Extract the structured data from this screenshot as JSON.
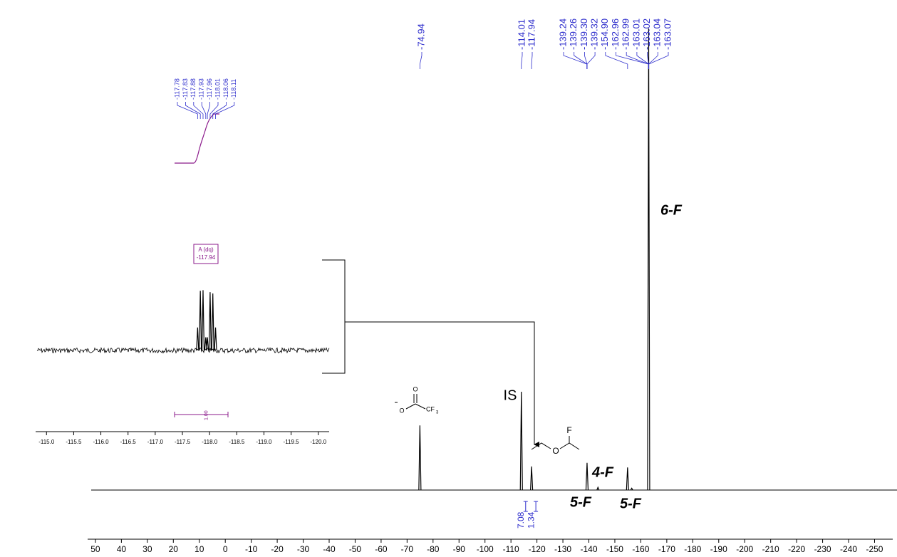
{
  "chart_data": [
    {
      "type": "spectrum",
      "xlim": [
        53,
        -257
      ],
      "xticks": [
        50,
        40,
        30,
        20,
        10,
        0,
        -10,
        -20,
        -30,
        -40,
        -50,
        -60,
        -70,
        -80,
        -90,
        -100,
        -110,
        -120,
        -130,
        -140,
        -150,
        -160,
        -170,
        -180,
        -190,
        -200,
        -210,
        -220,
        -230,
        -240,
        -250
      ],
      "ylim": [
        0,
        100
      ],
      "color": "#000000",
      "label_color": "#2d2dcc",
      "peaks": {
        "x": [
          -74.94,
          -114.01,
          -117.94,
          -139.3,
          -143.5,
          -154.9,
          -156.5,
          -163.02
        ],
        "values": [
          14,
          21.3,
          5.1,
          5.9,
          0.6,
          4.9,
          0.4,
          100
        ]
      },
      "peak_labels": [
        "-74.94",
        "-114.01",
        "-117.94",
        "-139.24",
        "-139.26",
        "-139.30",
        "-139.32",
        "-154.90",
        "-162.96",
        "-162.99",
        "-163.01",
        "-163.02",
        "-163.04",
        "-163.07"
      ],
      "integrals": {
        "x": [
          -114.01,
          -117.94
        ],
        "values": [
          7.08,
          1.34
        ]
      },
      "annotations": [
        "IS",
        "4-F",
        "5-F",
        "5-F",
        "6-F"
      ],
      "structure_labels": [
        "O",
        "O",
        "CF",
        "3",
        "F",
        "O"
      ]
    },
    {
      "type": "spectrum",
      "xlim": [
        -114.8,
        -120.2
      ],
      "xticks": [
        {
          "value": -115,
          "label": "-115.0"
        },
        {
          "value": -115.5,
          "label": "-115.5"
        },
        {
          "value": -116,
          "label": "-116.0"
        },
        {
          "value": -116.5,
          "label": "-116.5"
        },
        {
          "value": -117,
          "label": "-117.0"
        },
        {
          "value": -117.5,
          "label": "-117.5"
        },
        {
          "value": -118,
          "label": "-118.0"
        },
        {
          "value": -118.5,
          "label": "-118.5"
        },
        {
          "value": -119,
          "label": "-119.0"
        },
        {
          "value": -119.5,
          "label": "-119.5"
        },
        {
          "value": -120,
          "label": "-120.0"
        }
      ],
      "ylim": [
        0,
        100
      ],
      "color": "#000000",
      "label_color": "#2d2dcc",
      "peaks": {
        "x": [
          -117.78,
          -117.83,
          -117.88,
          -117.93,
          -117.96,
          -118.01,
          -118.06,
          -118.11
        ],
        "values": [
          35,
          91,
          92,
          20,
          20,
          89,
          87,
          35
        ]
      },
      "peak_labels": [
        "-117.78",
        "-117.83",
        "-117.88",
        "-117.93",
        "-117.96",
        "-118.01",
        "-118.06",
        "-118.11"
      ],
      "integrals": {
        "x": [
          -117.94
        ],
        "values": [
          1
        ],
        "value_labels": [
          "1.00"
        ]
      },
      "multiplet": {
        "label": "A (dq)",
        "shift": "-117.94"
      }
    }
  ]
}
